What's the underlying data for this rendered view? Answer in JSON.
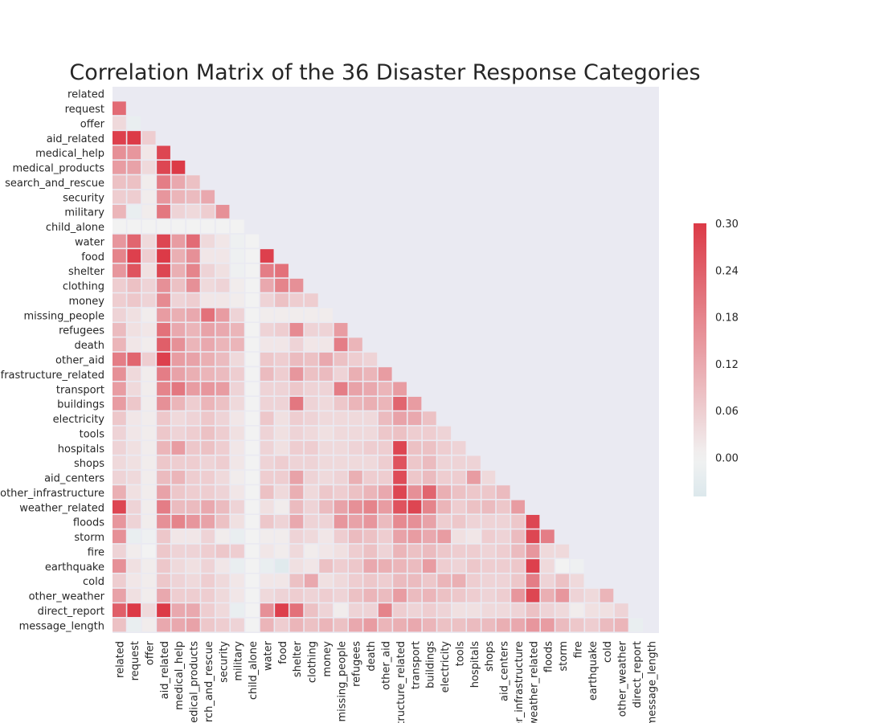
{
  "chart_data": {
    "type": "heatmap",
    "title": "Correlation Matrix of the 36 Disaster Response Categories",
    "mask": "upper-triangle-including-diagonal",
    "grid": false,
    "categories": [
      "related",
      "request",
      "offer",
      "aid_related",
      "medical_help",
      "medical_products",
      "search_and_rescue",
      "security",
      "military",
      "child_alone",
      "water",
      "food",
      "shelter",
      "clothing",
      "money",
      "missing_people",
      "refugees",
      "death",
      "other_aid",
      "infrastructure_related",
      "transport",
      "buildings",
      "electricity",
      "tools",
      "hospitals",
      "shops",
      "aid_centers",
      "other_infrastructure",
      "weather_related",
      "floods",
      "storm",
      "fire",
      "earthquake",
      "cold",
      "other_weather",
      "direct_report",
      "message_length"
    ],
    "colorbar": {
      "min": -0.05,
      "max": 0.3,
      "ticks": [
        0.3,
        0.24,
        0.18,
        0.12,
        0.06,
        0.0
      ],
      "tick_labels": [
        "0.30",
        "0.24",
        "0.18",
        "0.12",
        "0.06",
        "0.00"
      ],
      "color_low": "#dce8ec",
      "color_mid": "#f2f2f2",
      "color_high": "#dc3a47",
      "placement": "right"
    },
    "background_color": "#eaeaf2",
    "values": [
      [],
      [
        0.22
      ],
      [
        0.04,
        -0.02
      ],
      [
        0.29,
        0.3,
        0.06
      ],
      [
        0.16,
        0.15,
        0.02,
        0.28
      ],
      [
        0.14,
        0.13,
        0.04,
        0.28,
        0.3
      ],
      [
        0.08,
        0.08,
        0.01,
        0.19,
        0.12,
        0.08
      ],
      [
        0.06,
        0.06,
        0.01,
        0.15,
        0.1,
        0.09,
        0.12
      ],
      [
        0.1,
        -0.02,
        0.01,
        0.2,
        0.05,
        0.04,
        0.06,
        0.16
      ],
      [
        0.0,
        0.0,
        0.0,
        0.0,
        0.0,
        0.0,
        0.0,
        0.0,
        0.0
      ],
      [
        0.15,
        0.23,
        0.04,
        0.28,
        0.14,
        0.22,
        0.04,
        0.02,
        -0.01,
        0.0
      ],
      [
        0.18,
        0.29,
        0.06,
        0.3,
        0.11,
        0.16,
        0.02,
        0.02,
        -0.01,
        0.0,
        0.29
      ],
      [
        0.15,
        0.26,
        0.03,
        0.28,
        0.11,
        0.18,
        0.05,
        0.03,
        -0.01,
        0.0,
        0.19,
        0.21
      ],
      [
        0.06,
        0.08,
        0.05,
        0.16,
        0.08,
        0.16,
        0.04,
        0.05,
        0.01,
        0.0,
        0.12,
        0.18,
        0.16
      ],
      [
        0.06,
        0.07,
        0.05,
        0.17,
        0.05,
        0.06,
        0.02,
        0.02,
        0.01,
        0.0,
        0.05,
        0.08,
        0.06,
        0.06
      ],
      [
        0.05,
        0.03,
        0.01,
        0.14,
        0.11,
        0.12,
        0.21,
        0.14,
        0.05,
        0.0,
        0.01,
        0.01,
        0.01,
        0.01,
        0.01
      ],
      [
        0.09,
        0.03,
        0.02,
        0.21,
        0.12,
        0.1,
        0.13,
        0.12,
        0.1,
        0.0,
        0.05,
        0.06,
        0.17,
        0.05,
        0.05,
        0.14
      ],
      [
        0.1,
        0.02,
        0.01,
        0.24,
        0.16,
        0.1,
        0.12,
        0.1,
        0.1,
        0.0,
        0.02,
        0.02,
        0.05,
        0.02,
        0.02,
        0.19,
        0.1
      ],
      [
        0.19,
        0.23,
        0.06,
        0.29,
        0.14,
        0.13,
        0.11,
        0.09,
        0.04,
        0.0,
        0.07,
        0.06,
        0.09,
        0.08,
        0.12,
        0.08,
        0.06,
        0.05
      ],
      [
        0.16,
        0.04,
        0.01,
        0.19,
        0.13,
        0.11,
        0.1,
        0.09,
        0.06,
        0.0,
        0.09,
        0.06,
        0.15,
        0.08,
        0.09,
        0.05,
        0.11,
        0.1,
        0.14
      ],
      [
        0.14,
        0.04,
        0.01,
        0.18,
        0.2,
        0.14,
        0.15,
        0.14,
        0.05,
        0.0,
        0.05,
        0.05,
        0.07,
        0.05,
        0.05,
        0.19,
        0.13,
        0.12,
        0.1,
        0.14
      ],
      [
        0.14,
        0.07,
        0.01,
        0.16,
        0.1,
        0.06,
        0.1,
        0.08,
        0.04,
        0.0,
        0.05,
        0.05,
        0.2,
        0.05,
        0.04,
        0.07,
        0.1,
        0.11,
        0.1,
        0.23,
        0.14
      ],
      [
        0.07,
        0.02,
        0.01,
        0.07,
        0.04,
        0.05,
        0.07,
        0.05,
        0.02,
        0.0,
        0.07,
        0.03,
        0.06,
        0.05,
        0.04,
        0.04,
        0.04,
        0.04,
        0.09,
        0.13,
        0.12,
        0.08
      ],
      [
        0.05,
        0.02,
        0.01,
        0.07,
        0.05,
        0.06,
        0.08,
        0.06,
        0.03,
        0.0,
        0.05,
        0.03,
        0.05,
        0.04,
        0.03,
        0.04,
        0.04,
        0.04,
        0.07,
        0.08,
        0.06,
        0.06,
        0.05
      ],
      [
        0.05,
        0.03,
        0.01,
        0.1,
        0.14,
        0.07,
        0.08,
        0.06,
        0.02,
        0.0,
        0.05,
        0.03,
        0.06,
        0.06,
        0.04,
        0.04,
        0.05,
        0.06,
        0.06,
        0.28,
        0.08,
        0.08,
        0.06,
        0.05
      ],
      [
        0.04,
        0.03,
        0.01,
        0.07,
        0.06,
        0.06,
        0.05,
        0.06,
        0.02,
        0.0,
        0.05,
        0.06,
        0.05,
        0.05,
        0.04,
        0.04,
        0.04,
        0.04,
        0.06,
        0.26,
        0.07,
        0.09,
        0.05,
        0.05,
        0.05
      ],
      [
        0.05,
        0.04,
        0.01,
        0.09,
        0.1,
        0.06,
        0.06,
        0.04,
        0.01,
        0.0,
        0.06,
        0.06,
        0.13,
        0.05,
        0.04,
        0.05,
        0.11,
        0.06,
        0.06,
        0.27,
        0.07,
        0.09,
        0.06,
        0.06,
        0.14,
        0.04
      ],
      [
        0.11,
        0.03,
        0.01,
        0.13,
        0.07,
        0.06,
        0.06,
        0.05,
        0.02,
        0.0,
        0.08,
        0.04,
        0.11,
        0.04,
        0.07,
        0.06,
        0.08,
        0.1,
        0.12,
        0.28,
        0.16,
        0.23,
        0.11,
        0.08,
        0.07,
        0.07,
        0.09
      ],
      [
        0.28,
        0.05,
        0.01,
        0.19,
        0.09,
        0.09,
        0.12,
        0.09,
        0.05,
        0.0,
        0.03,
        0.01,
        0.09,
        0.05,
        0.09,
        0.13,
        0.16,
        0.18,
        0.14,
        0.26,
        0.28,
        0.18,
        0.1,
        0.06,
        0.08,
        0.09,
        0.07,
        0.14
      ],
      [
        0.15,
        0.05,
        0.01,
        0.16,
        0.18,
        0.15,
        0.13,
        0.08,
        0.03,
        0.0,
        0.07,
        0.05,
        0.12,
        0.05,
        0.05,
        0.15,
        0.13,
        0.15,
        0.09,
        0.17,
        0.16,
        0.13,
        0.06,
        0.07,
        0.05,
        0.05,
        0.05,
        0.07,
        0.28
      ],
      [
        0.16,
        -0.02,
        -0.01,
        0.07,
        0.02,
        0.02,
        0.05,
        0.01,
        -0.02,
        0.0,
        0.01,
        0.01,
        0.05,
        0.04,
        0.02,
        0.06,
        0.09,
        0.08,
        0.06,
        0.13,
        0.14,
        0.12,
        0.14,
        0.03,
        0.02,
        0.06,
        0.05,
        0.09,
        0.28,
        0.19
      ],
      [
        0.05,
        0.01,
        0.0,
        0.07,
        0.05,
        0.05,
        0.06,
        0.07,
        0.06,
        0.0,
        0.02,
        0.01,
        0.04,
        0.01,
        0.02,
        0.03,
        0.06,
        0.08,
        0.05,
        0.1,
        0.08,
        0.09,
        0.07,
        0.06,
        0.06,
        0.05,
        0.06,
        0.09,
        0.15,
        0.04,
        0.04
      ],
      [
        0.16,
        0.03,
        0.01,
        0.07,
        0.04,
        0.03,
        0.05,
        0.02,
        -0.02,
        0.0,
        -0.02,
        -0.04,
        0.03,
        0.02,
        0.08,
        0.06,
        0.07,
        0.12,
        0.11,
        0.1,
        0.09,
        0.14,
        0.06,
        0.05,
        0.07,
        0.06,
        0.06,
        0.07,
        0.29,
        0.04,
        0.0,
        -0.01
      ],
      [
        0.06,
        0.02,
        0.01,
        0.07,
        0.05,
        0.04,
        0.06,
        0.04,
        0.02,
        0.0,
        0.02,
        0.02,
        0.08,
        0.12,
        0.03,
        0.04,
        0.06,
        0.07,
        0.06,
        0.09,
        0.09,
        0.07,
        0.1,
        0.11,
        0.06,
        0.05,
        0.05,
        0.07,
        0.19,
        0.05,
        0.08,
        0.04
      ],
      [
        0.13,
        0.03,
        0.01,
        0.12,
        0.06,
        0.06,
        0.06,
        0.04,
        0.02,
        0.0,
        0.04,
        0.05,
        0.06,
        0.05,
        0.06,
        0.05,
        0.08,
        0.1,
        0.09,
        0.14,
        0.09,
        0.1,
        0.08,
        0.07,
        0.06,
        0.05,
        0.06,
        0.15,
        0.28,
        0.11,
        0.15,
        0.05,
        0.04,
        0.1
      ],
      [
        0.24,
        0.3,
        0.04,
        0.3,
        0.12,
        0.12,
        0.06,
        0.04,
        -0.02,
        0.0,
        0.16,
        0.29,
        0.21,
        0.08,
        0.05,
        0.01,
        0.05,
        0.05,
        0.18,
        0.06,
        0.05,
        0.06,
        0.05,
        0.03,
        0.03,
        0.04,
        0.04,
        0.05,
        0.08,
        0.05,
        0.04,
        0.01,
        0.03,
        0.03,
        0.05
      ],
      [
        0.08,
        -0.02,
        0.01,
        0.12,
        0.12,
        0.13,
        0.07,
        0.06,
        0.05,
        0.0,
        0.1,
        0.06,
        0.1,
        0.08,
        0.1,
        0.08,
        0.12,
        0.14,
        0.1,
        0.11,
        0.12,
        0.1,
        0.08,
        0.08,
        0.09,
        0.09,
        0.11,
        0.12,
        0.15,
        0.14,
        0.09,
        0.07,
        0.06,
        0.09,
        0.1,
        -0.02
      ]
    ]
  }
}
